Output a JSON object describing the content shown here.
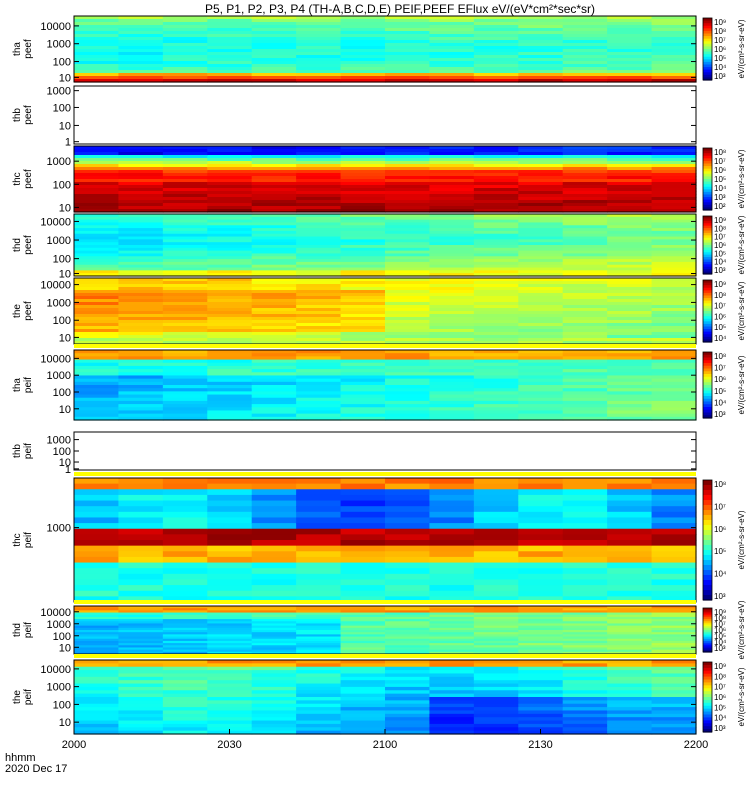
{
  "title": "P5, P1, P2, P3, P4 (TH-A,B,C,D,E) PEIF,PEEF EFlux eV/(eV*cm²*sec*sr)",
  "footer": {
    "time_label": "hhmm",
    "date_label": "2020 Dec 17"
  },
  "x_tick_labels": [
    "2000",
    "2030",
    "2100",
    "2130",
    "2200"
  ],
  "colorbar_unit_label": "eV/(cm²-s-sr-eV)",
  "chart_data": [
    {
      "type": "heatmap",
      "panel": "tha peef",
      "ylabel": [
        "tha",
        "peef"
      ],
      "yticks": [
        "10000",
        "1000",
        "100",
        "10"
      ],
      "colorbar_ticks": [
        "10⁹",
        "10⁸",
        "10⁷",
        "10⁶",
        "10⁵",
        "10⁴",
        "10³"
      ],
      "has_data": true,
      "xlim": [
        "2000",
        "2200"
      ],
      "ylim": [
        7,
        30000
      ],
      "yscale": "log",
      "description_levels": [
        0.45,
        0.5,
        0.5,
        0.55,
        0.55,
        0.6,
        0.62
      ]
    },
    {
      "type": "heatmap",
      "panel": "thb peef",
      "ylabel": [
        "thb",
        "peef"
      ],
      "yticks": [
        "1000",
        "100",
        "10",
        "1"
      ],
      "has_data": false,
      "yscale": "log"
    },
    {
      "type": "heatmap",
      "panel": "thc peef",
      "ylabel": [
        "thc",
        "peef"
      ],
      "yticks": [
        "1000",
        "100",
        "10"
      ],
      "colorbar_ticks": [
        "10⁸",
        "10⁷",
        "10⁶",
        "10⁵",
        "10⁴",
        "10³",
        "10²"
      ],
      "has_data": true,
      "yscale": "log"
    },
    {
      "type": "heatmap",
      "panel": "thd peef",
      "ylabel": [
        "thd",
        "peef"
      ],
      "yticks": [
        "10000",
        "1000",
        "100",
        "10"
      ],
      "colorbar_ticks": [
        "10⁹",
        "10⁸",
        "10⁷",
        "10⁶",
        "10⁵",
        "10⁴",
        "10³"
      ],
      "has_data": true,
      "yscale": "log"
    },
    {
      "type": "heatmap",
      "panel": "the peef",
      "ylabel": [
        "the",
        "peef"
      ],
      "yticks": [
        "10000",
        "1000",
        "100",
        "10"
      ],
      "colorbar_ticks": [
        "10⁹",
        "10⁸",
        "10⁷",
        "10⁶",
        "10⁵",
        "10⁴"
      ],
      "has_data": true,
      "yscale": "log"
    },
    {
      "type": "heatmap",
      "panel": "tha peif",
      "ylabel": [
        "tha",
        "peif"
      ],
      "yticks": [
        "10000",
        "1000",
        "100",
        "10"
      ],
      "colorbar_ticks": [
        "10⁸",
        "10⁷",
        "10⁶",
        "10⁵",
        "10⁴",
        "10³"
      ],
      "has_data": true,
      "yscale": "log"
    },
    {
      "type": "heatmap",
      "panel": "thb peif",
      "ylabel": [
        "thb",
        "peif"
      ],
      "yticks": [
        "1000",
        "100",
        "10",
        "1"
      ],
      "has_data": false,
      "yscale": "log"
    },
    {
      "type": "heatmap",
      "panel": "thc peif",
      "ylabel": [
        "thc",
        "peif"
      ],
      "yticks": [
        "1000"
      ],
      "colorbar_ticks": [
        "10⁸",
        "10⁷",
        "10⁶",
        "10⁵",
        "10⁴",
        "10³"
      ],
      "has_data": true,
      "yscale": "log"
    },
    {
      "type": "heatmap",
      "panel": "thd peif",
      "ylabel": [
        "thd",
        "peif"
      ],
      "yticks": [
        "10000",
        "1000",
        "100",
        "10"
      ],
      "colorbar_ticks": [
        "10⁹",
        "10⁸",
        "10⁷",
        "10⁶",
        "10⁵",
        "10⁴",
        "10³"
      ],
      "has_data": true,
      "yscale": "log"
    },
    {
      "type": "heatmap",
      "panel": "the peif",
      "ylabel": [
        "the",
        "peif"
      ],
      "yticks": [
        "10000",
        "1000",
        "100",
        "10"
      ],
      "colorbar_ticks": [
        "10⁹",
        "10⁸",
        "10⁷",
        "10⁶",
        "10⁵",
        "10⁴",
        "10³"
      ],
      "has_data": true,
      "yscale": "log"
    }
  ]
}
